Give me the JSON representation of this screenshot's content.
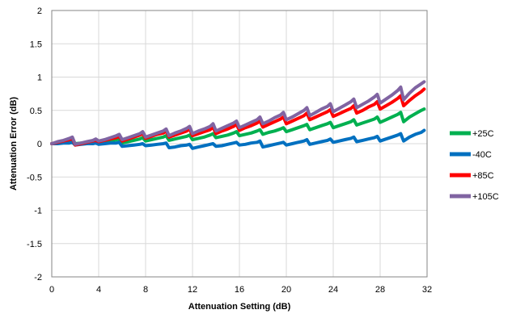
{
  "chart_data": {
    "type": "line",
    "xlabel": "Attenuation Setting (dB)",
    "ylabel": "Attenuation Error (dB)",
    "xlim": [
      0,
      32
    ],
    "ylim": [
      -2,
      2
    ],
    "xticks": [
      0,
      4,
      8,
      12,
      16,
      20,
      24,
      28,
      32
    ],
    "yticks": [
      2,
      1.5,
      1,
      0.5,
      0,
      -0.5,
      -1,
      -1.5,
      -2
    ],
    "xtick_labels": [
      "0",
      "4",
      "8",
      "12",
      "16",
      "20",
      "24",
      "28",
      "32"
    ],
    "ytick_labels": [
      "2",
      "1.5",
      "1",
      "0.5",
      "0",
      "-0.5",
      "-1",
      "-1.5",
      "-2"
    ],
    "grid": true,
    "legend_position": "right",
    "x": [
      0,
      0.5,
      1,
      1.5,
      1.75,
      2,
      2.5,
      3,
      3.5,
      3.75,
      4,
      4.5,
      5,
      5.5,
      5.75,
      6,
      6.5,
      7,
      7.5,
      7.75,
      8,
      8.5,
      9,
      9.5,
      9.75,
      10,
      10.5,
      11,
      11.5,
      11.75,
      12,
      12.5,
      13,
      13.5,
      13.75,
      14,
      14.5,
      15,
      15.5,
      15.75,
      16,
      16.5,
      17,
      17.5,
      17.75,
      18,
      18.5,
      19,
      19.5,
      19.75,
      20,
      20.5,
      21,
      21.5,
      21.75,
      22,
      22.5,
      23,
      23.5,
      23.75,
      24,
      24.5,
      25,
      25.5,
      25.75,
      26,
      26.5,
      27,
      27.5,
      27.75,
      28,
      28.5,
      29,
      29.5,
      29.75,
      30,
      30.5,
      31,
      31.5,
      31.75
    ],
    "series": [
      {
        "name": "+25C",
        "color": "#00B050",
        "values": [
          0,
          0.01,
          0.02,
          0.04,
          0.05,
          0.0,
          0.01,
          0.02,
          0.03,
          0.04,
          0.02,
          0.03,
          0.04,
          0.06,
          0.07,
          0.01,
          0.03,
          0.05,
          0.07,
          0.09,
          0.04,
          0.06,
          0.08,
          0.1,
          0.12,
          0.05,
          0.07,
          0.09,
          0.11,
          0.13,
          0.06,
          0.08,
          0.1,
          0.13,
          0.15,
          0.09,
          0.11,
          0.13,
          0.16,
          0.18,
          0.12,
          0.14,
          0.16,
          0.19,
          0.21,
          0.14,
          0.17,
          0.19,
          0.22,
          0.24,
          0.18,
          0.21,
          0.24,
          0.27,
          0.29,
          0.21,
          0.24,
          0.27,
          0.3,
          0.32,
          0.24,
          0.27,
          0.3,
          0.33,
          0.36,
          0.28,
          0.31,
          0.34,
          0.37,
          0.4,
          0.32,
          0.36,
          0.4,
          0.44,
          0.47,
          0.33,
          0.4,
          0.45,
          0.5,
          0.52
        ]
      },
      {
        "name": "-40C",
        "color": "#0070C0",
        "values": [
          0,
          0.0,
          0.01,
          0.01,
          0.02,
          -0.02,
          -0.01,
          0.0,
          0.0,
          0.01,
          -0.01,
          0.0,
          0.01,
          0.01,
          0.02,
          -0.04,
          -0.03,
          -0.02,
          -0.01,
          0.0,
          -0.03,
          -0.02,
          -0.01,
          0.0,
          0.01,
          -0.06,
          -0.05,
          -0.03,
          -0.02,
          -0.01,
          -0.07,
          -0.05,
          -0.03,
          -0.01,
          0.0,
          -0.04,
          -0.03,
          -0.01,
          0.01,
          0.02,
          -0.02,
          -0.01,
          0.01,
          0.02,
          0.04,
          -0.05,
          -0.03,
          -0.01,
          0.01,
          0.02,
          -0.02,
          0.0,
          0.02,
          0.04,
          0.06,
          -0.01,
          0.01,
          0.03,
          0.05,
          0.07,
          0.02,
          0.04,
          0.06,
          0.08,
          0.1,
          0.03,
          0.05,
          0.07,
          0.09,
          0.11,
          0.04,
          0.07,
          0.1,
          0.13,
          0.15,
          0.04,
          0.1,
          0.14,
          0.17,
          0.2
        ]
      },
      {
        "name": "+85C",
        "color": "#FF0000",
        "values": [
          0,
          0.02,
          0.04,
          0.06,
          0.08,
          -0.02,
          0.0,
          0.02,
          0.04,
          0.05,
          0.03,
          0.05,
          0.07,
          0.09,
          0.11,
          0.04,
          0.07,
          0.1,
          0.13,
          0.15,
          0.08,
          0.11,
          0.14,
          0.16,
          0.19,
          0.1,
          0.13,
          0.16,
          0.19,
          0.22,
          0.12,
          0.15,
          0.18,
          0.21,
          0.25,
          0.15,
          0.19,
          0.22,
          0.26,
          0.29,
          0.2,
          0.24,
          0.27,
          0.31,
          0.34,
          0.25,
          0.29,
          0.33,
          0.37,
          0.4,
          0.3,
          0.34,
          0.38,
          0.42,
          0.46,
          0.36,
          0.4,
          0.44,
          0.48,
          0.51,
          0.41,
          0.45,
          0.49,
          0.53,
          0.57,
          0.46,
          0.5,
          0.55,
          0.59,
          0.63,
          0.52,
          0.57,
          0.62,
          0.68,
          0.72,
          0.57,
          0.65,
          0.72,
          0.78,
          0.82
        ]
      },
      {
        "name": "+105C",
        "color": "#8064A2",
        "values": [
          0,
          0.03,
          0.05,
          0.08,
          0.1,
          -0.01,
          0.01,
          0.03,
          0.05,
          0.07,
          0.04,
          0.06,
          0.09,
          0.12,
          0.14,
          0.06,
          0.09,
          0.12,
          0.15,
          0.18,
          0.1,
          0.13,
          0.16,
          0.19,
          0.22,
          0.12,
          0.16,
          0.19,
          0.23,
          0.26,
          0.15,
          0.19,
          0.22,
          0.26,
          0.3,
          0.19,
          0.23,
          0.27,
          0.31,
          0.34,
          0.24,
          0.28,
          0.32,
          0.36,
          0.4,
          0.3,
          0.34,
          0.39,
          0.43,
          0.47,
          0.36,
          0.4,
          0.45,
          0.5,
          0.54,
          0.42,
          0.47,
          0.52,
          0.56,
          0.6,
          0.48,
          0.53,
          0.58,
          0.63,
          0.67,
          0.54,
          0.59,
          0.64,
          0.7,
          0.74,
          0.61,
          0.67,
          0.73,
          0.8,
          0.85,
          0.66,
          0.76,
          0.84,
          0.9,
          0.93
        ]
      }
    ]
  }
}
